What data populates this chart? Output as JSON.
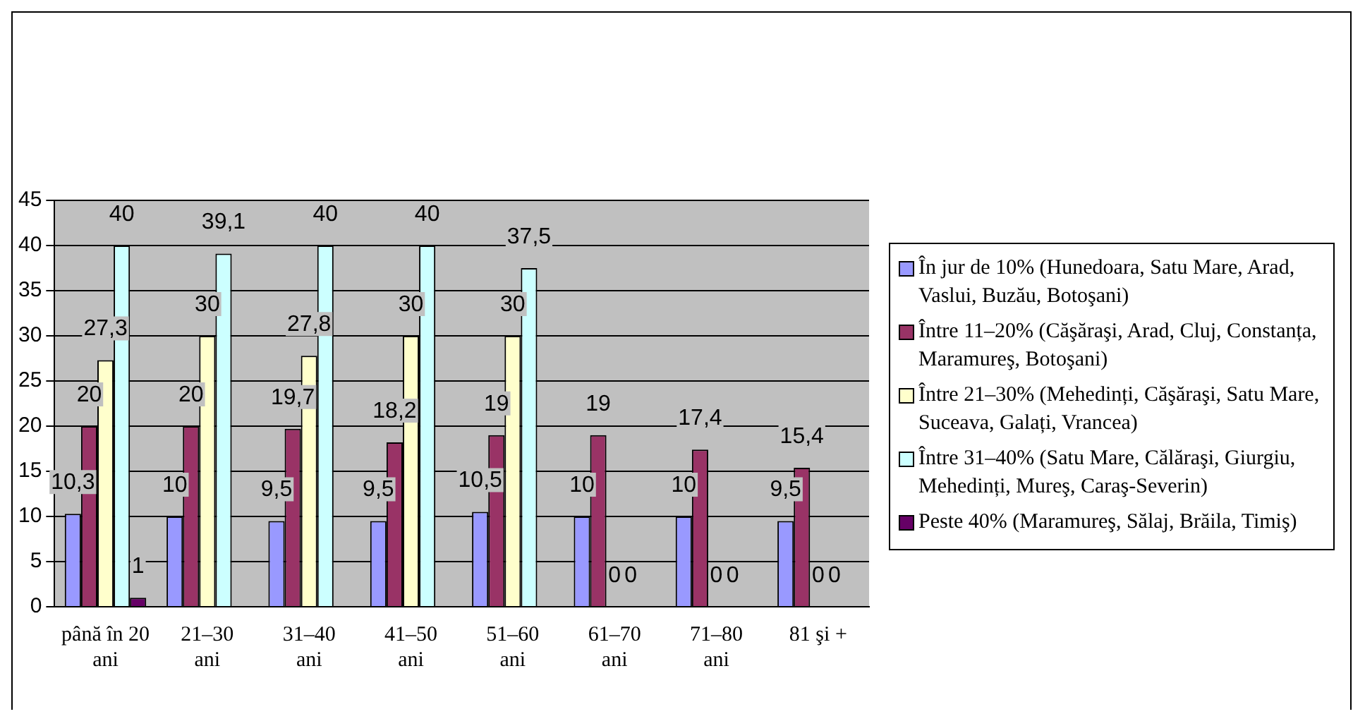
{
  "chart_data": {
    "type": "bar",
    "categories": [
      "până în 20 ani",
      "21–30 ani",
      "31–40 ani",
      "41–50 ani",
      "51–60 ani",
      "61–70 ani",
      "71–80 ani",
      "81 şi +"
    ],
    "series": [
      {
        "name": "În jur de 10% (Hunedoara, Satu Mare, Arad, Vaslui, Buzău, Botoşani)",
        "color": "#9999ff",
        "values": [
          10.3,
          10,
          9.5,
          9.5,
          10.5,
          10,
          10,
          9.5
        ],
        "value_labels": [
          "10,3",
          "10",
          "9,5",
          "9,5",
          "10,5",
          "10",
          "10",
          "9,5"
        ]
      },
      {
        "name": "Între 11–20% (Căşăraşi, Arad, Cluj, Constanța, Maramureş, Botoşani)",
        "color": "#993366",
        "values": [
          20,
          20,
          19.7,
          18.2,
          19,
          19,
          17.4,
          15.4
        ],
        "value_labels": [
          "20",
          "20",
          "19,7",
          "18,2",
          "19",
          "19",
          "17,4",
          "15,4"
        ]
      },
      {
        "name": "Între 21–30% (Mehedinți, Căşăraşi, Satu Mare, Suceava, Galați, Vrancea)",
        "color": "#ffffcc",
        "values": [
          27.3,
          30,
          27.8,
          30,
          30,
          0,
          0,
          0
        ],
        "value_labels": [
          "27,3",
          "30",
          "27,8",
          "30",
          "30",
          "0",
          "0",
          "0"
        ]
      },
      {
        "name": "Între 31–40% (Satu Mare, Călăraşi, Giurgiu, Mehedinți, Mureş, Caraş-Severin)",
        "color": "#ccffff",
        "values": [
          40,
          39.1,
          40,
          40,
          37.5,
          0,
          0,
          0
        ],
        "value_labels": [
          "40",
          "39,1",
          "40",
          "40",
          "37,5",
          "0",
          "0",
          "0"
        ]
      },
      {
        "name": "Peste 40% (Maramureş, Sălaj, Brăila, Timiş)",
        "color": "#660066",
        "values": [
          1,
          null,
          null,
          null,
          null,
          null,
          null,
          null
        ],
        "value_labels": [
          "1",
          null,
          null,
          null,
          null,
          null,
          null,
          null
        ]
      }
    ],
    "ylim": [
      0,
      45
    ],
    "yticks": [
      0,
      5,
      10,
      15,
      20,
      25,
      30,
      35,
      40,
      45
    ],
    "grid": "y",
    "legend": "right"
  }
}
